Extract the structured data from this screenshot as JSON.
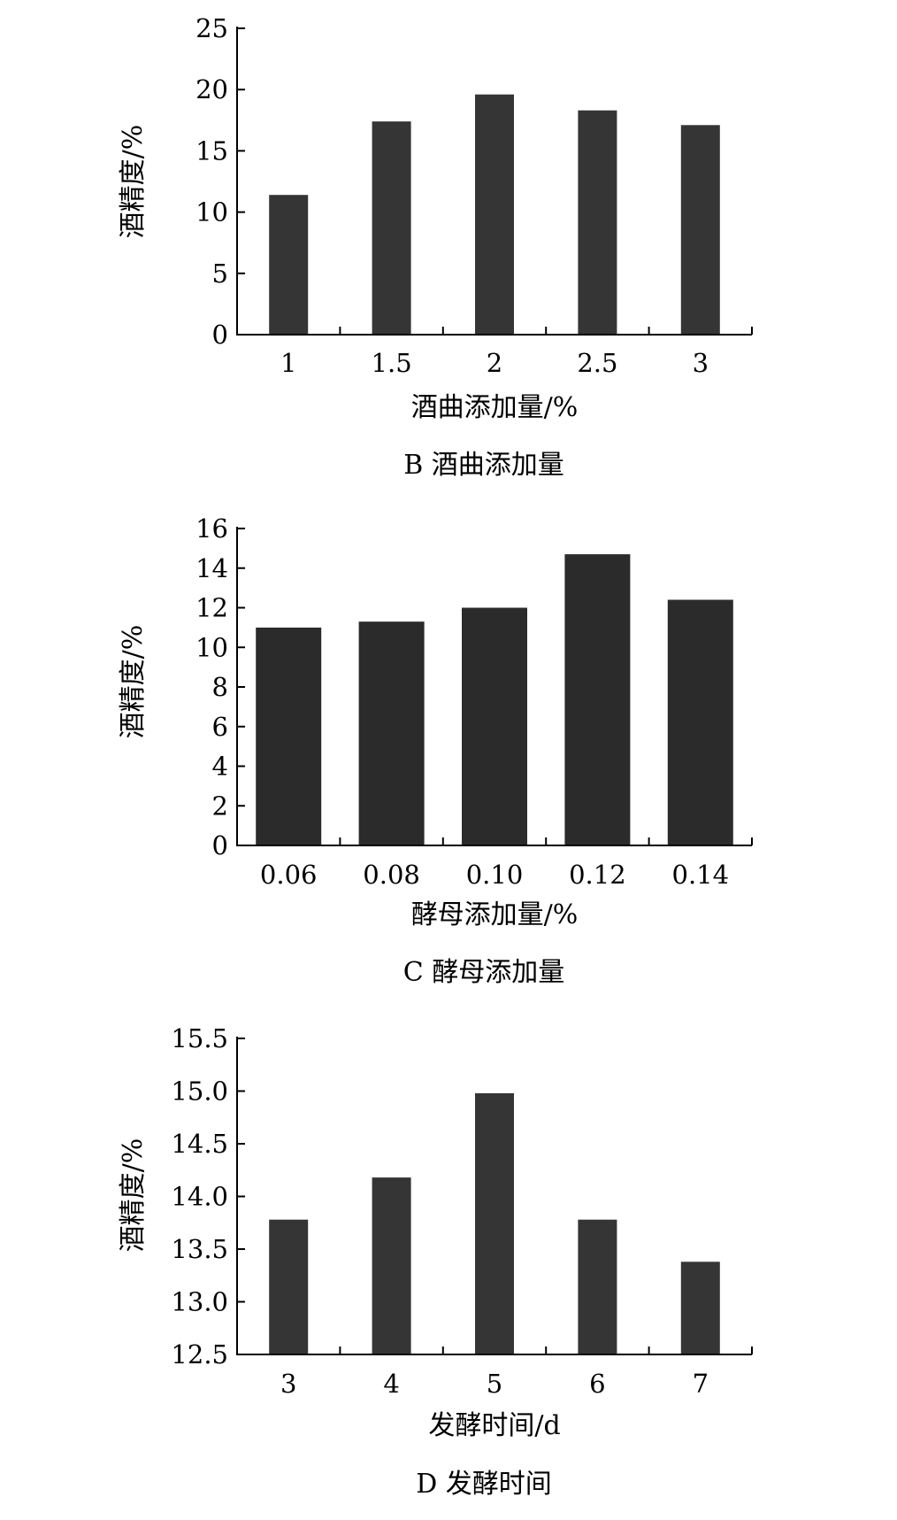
{
  "chart_data": [
    {
      "type": "bar",
      "categories": [
        "1",
        "1.5",
        "2",
        "2.5",
        "3"
      ],
      "values": [
        11.4,
        17.4,
        19.6,
        18.3,
        17.1
      ],
      "ylim": [
        0,
        25
      ],
      "yticks": [
        "0",
        "5",
        "10",
        "15",
        "20",
        "25"
      ],
      "ytick_values": [
        0,
        5,
        10,
        15,
        20,
        25
      ],
      "xlabel": "酒曲添加量/%",
      "ylabel": "酒精度/%",
      "caption": "B 酒曲添加量",
      "grid": false,
      "bar_color": "#353535"
    },
    {
      "type": "bar",
      "categories": [
        "0.06",
        "0.08",
        "0.10",
        "0.12",
        "0.14"
      ],
      "values": [
        11.0,
        11.3,
        12.0,
        14.7,
        12.4
      ],
      "ylim": [
        0,
        16
      ],
      "yticks": [
        "0",
        "2",
        "4",
        "6",
        "8",
        "10",
        "12",
        "14",
        "16"
      ],
      "ytick_values": [
        0,
        2,
        4,
        6,
        8,
        10,
        12,
        14,
        16
      ],
      "xlabel": "酵母添加量/%",
      "ylabel": "酒精度/%",
      "caption": "C 酵母添加量",
      "grid": false,
      "bar_color": "#2b2b2b"
    },
    {
      "type": "bar",
      "categories": [
        "3",
        "4",
        "5",
        "6",
        "7"
      ],
      "values": [
        13.78,
        14.18,
        14.98,
        13.78,
        13.38
      ],
      "ylim": [
        12.5,
        15.5
      ],
      "yticks": [
        "12.5",
        "13.0",
        "13.5",
        "14.0",
        "14.5",
        "15.0",
        "15.5"
      ],
      "ytick_values": [
        12.5,
        13.0,
        13.5,
        14.0,
        14.5,
        15.0,
        15.5
      ],
      "xlabel": "发酵时间/d",
      "ylabel": "酒精度/%",
      "caption": "D 发酵时间",
      "grid": false,
      "bar_color": "#353535"
    }
  ]
}
